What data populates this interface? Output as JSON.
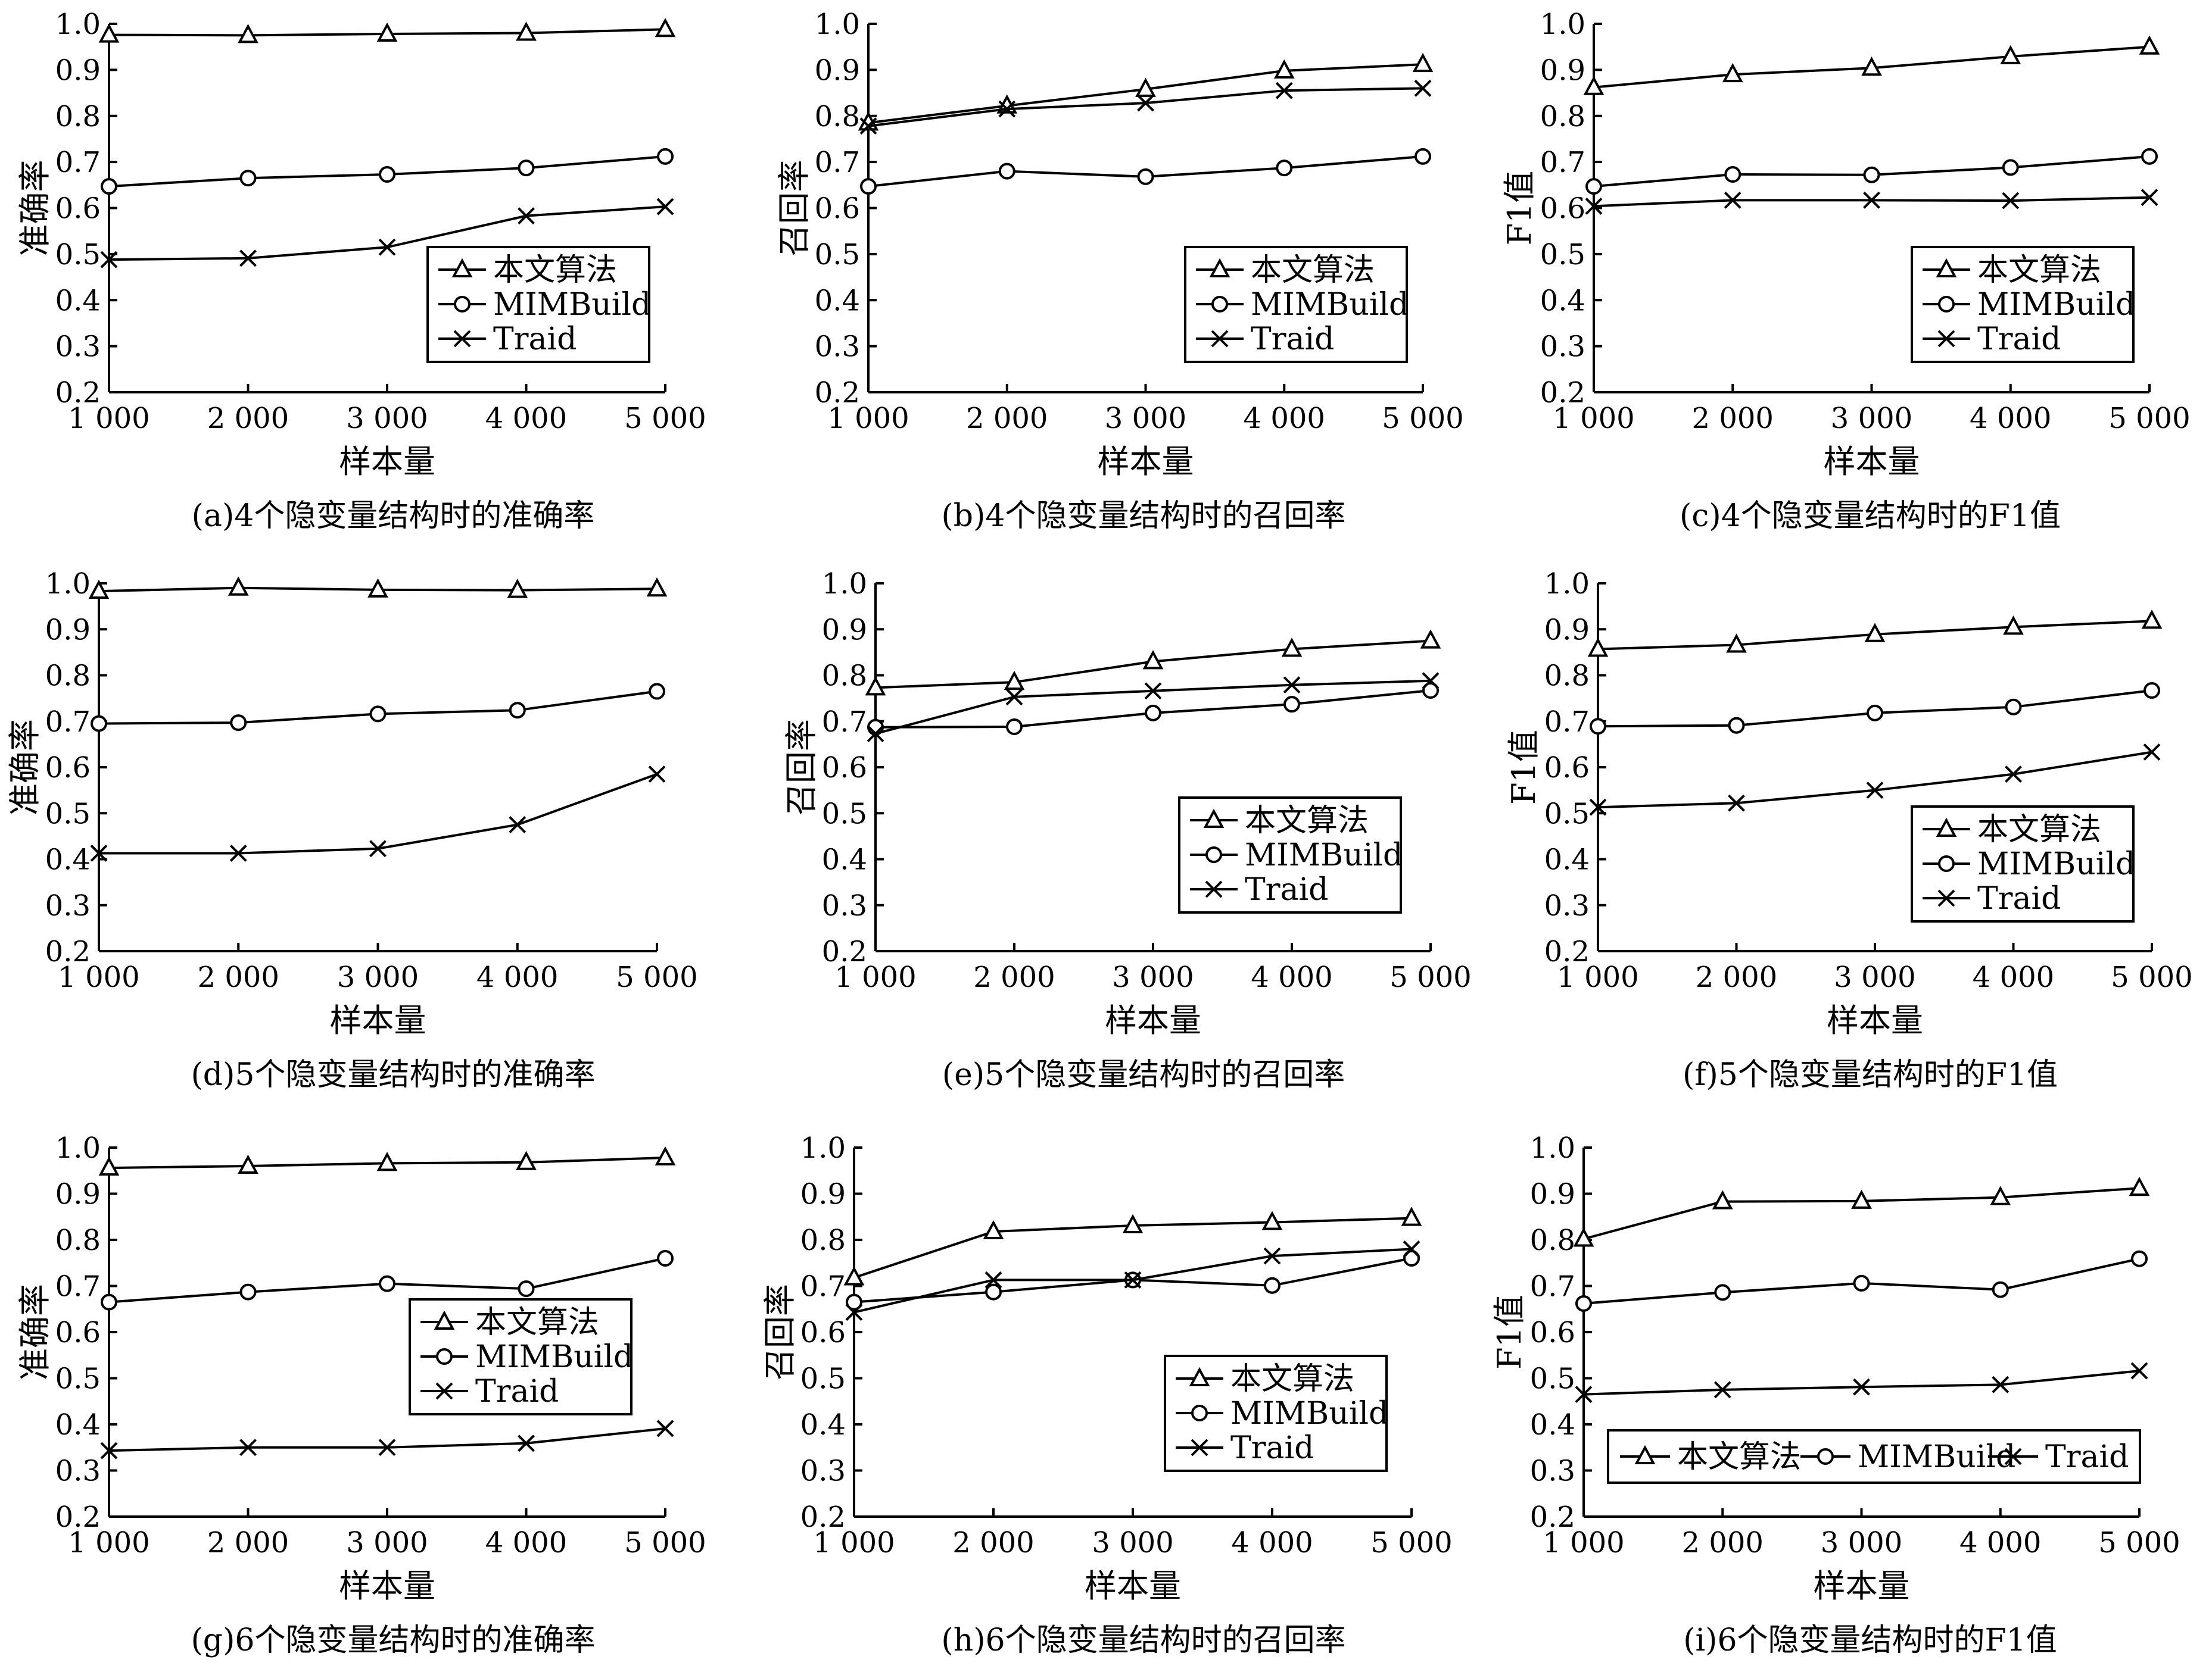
{
  "chart_data": [
    {
      "type": "line",
      "caption": "(a)4个隐变量结构时的准确率",
      "xlabel": "样本量",
      "ylabel": "准确率",
      "categories": [
        "1 000",
        "2 000",
        "3 000",
        "4 000",
        "5 000"
      ],
      "ylim": [
        0.2,
        1.0
      ],
      "yticks": [
        "0.2",
        "0.3",
        "0.4",
        "0.5",
        "0.6",
        "0.7",
        "0.8",
        "0.9",
        "1.0"
      ],
      "legend": "right-middle",
      "series": [
        {
          "name": "本文算法",
          "marker": "triangle",
          "values": [
            0.976,
            0.975,
            0.978,
            0.98,
            0.988
          ]
        },
        {
          "name": "MIMBuild",
          "marker": "circle",
          "values": [
            0.647,
            0.665,
            0.673,
            0.687,
            0.712
          ]
        },
        {
          "name": "Traid",
          "marker": "cross",
          "values": [
            0.488,
            0.491,
            0.515,
            0.583,
            0.603
          ]
        }
      ]
    },
    {
      "type": "line",
      "caption": "(b)4个隐变量结构时的召回率",
      "xlabel": "样本量",
      "ylabel": "召回率",
      "categories": [
        "1 000",
        "2 000",
        "3 000",
        "4 000",
        "5 000"
      ],
      "ylim": [
        0.2,
        1.0
      ],
      "yticks": [
        "0.2",
        "0.3",
        "0.4",
        "0.5",
        "0.6",
        "0.7",
        "0.8",
        "0.9",
        "1.0"
      ],
      "legend": "right-middle",
      "series": [
        {
          "name": "本文算法",
          "marker": "triangle",
          "values": [
            0.785,
            0.822,
            0.858,
            0.898,
            0.912
          ]
        },
        {
          "name": "MIMBuild",
          "marker": "circle",
          "values": [
            0.647,
            0.68,
            0.668,
            0.687,
            0.712
          ]
        },
        {
          "name": "Traid",
          "marker": "cross",
          "values": [
            0.778,
            0.815,
            0.828,
            0.855,
            0.86
          ]
        }
      ]
    },
    {
      "type": "line",
      "caption": "(c)4个隐变量结构时的F1值",
      "xlabel": "样本量",
      "ylabel": "F1值",
      "categories": [
        "1 000",
        "2 000",
        "3 000",
        "4 000",
        "5 000"
      ],
      "ylim": [
        0.2,
        1.0
      ],
      "yticks": [
        "0.2",
        "0.3",
        "0.4",
        "0.5",
        "0.6",
        "0.7",
        "0.8",
        "0.9",
        "1.0"
      ],
      "legend": "right-middle",
      "series": [
        {
          "name": "本文算法",
          "marker": "triangle",
          "values": [
            0.862,
            0.89,
            0.904,
            0.929,
            0.95
          ]
        },
        {
          "name": "MIMBuild",
          "marker": "circle",
          "values": [
            0.647,
            0.673,
            0.672,
            0.688,
            0.712
          ]
        },
        {
          "name": "Traid",
          "marker": "cross",
          "values": [
            0.604,
            0.617,
            0.617,
            0.616,
            0.623
          ]
        }
      ]
    },
    {
      "type": "line",
      "caption": "(d)5个隐变量结构时的准确率",
      "xlabel": "样本量",
      "ylabel": "准确率",
      "categories": [
        "1 000",
        "2 000",
        "3 000",
        "4 000",
        "5 000"
      ],
      "ylim": [
        0.2,
        1.0
      ],
      "yticks": [
        "0.2",
        "0.3",
        "0.4",
        "0.5",
        "0.6",
        "0.7",
        "0.8",
        "0.9",
        "1.0"
      ],
      "legend": "bottom-horizontal",
      "series": [
        {
          "name": "本文算法",
          "marker": "triangle",
          "values": [
            0.983,
            0.99,
            0.986,
            0.985,
            0.988
          ]
        },
        {
          "name": "MIMBuild",
          "marker": "circle",
          "values": [
            0.695,
            0.697,
            0.716,
            0.724,
            0.765
          ]
        },
        {
          "name": "Traid",
          "marker": "cross",
          "values": [
            0.413,
            0.413,
            0.423,
            0.475,
            0.585
          ]
        }
      ]
    },
    {
      "type": "line",
      "caption": "(e)5个隐变量结构时的召回率",
      "xlabel": "样本量",
      "ylabel": "召回率",
      "categories": [
        "1 000",
        "2 000",
        "3 000",
        "4 000",
        "5 000"
      ],
      "ylim": [
        0.2,
        1.0
      ],
      "yticks": [
        "0.2",
        "0.3",
        "0.4",
        "0.5",
        "0.6",
        "0.7",
        "0.8",
        "0.9",
        "1.0"
      ],
      "legend": "right-middle",
      "series": [
        {
          "name": "本文算法",
          "marker": "triangle",
          "values": [
            0.773,
            0.785,
            0.83,
            0.857,
            0.875
          ]
        },
        {
          "name": "MIMBuild",
          "marker": "circle",
          "values": [
            0.687,
            0.688,
            0.718,
            0.737,
            0.767
          ]
        },
        {
          "name": "Traid",
          "marker": "cross",
          "values": [
            0.673,
            0.753,
            0.766,
            0.779,
            0.788
          ]
        }
      ]
    },
    {
      "type": "line",
      "caption": "(f)5个隐变量结构时的F1值",
      "xlabel": "样本量",
      "ylabel": "F1值",
      "categories": [
        "1 000",
        "2 000",
        "3 000",
        "4 000",
        "5 000"
      ],
      "ylim": [
        0.2,
        1.0
      ],
      "yticks": [
        "0.2",
        "0.3",
        "0.4",
        "0.5",
        "0.6",
        "0.7",
        "0.8",
        "0.9",
        "1.0"
      ],
      "legend": "right-middle",
      "series": [
        {
          "name": "本文算法",
          "marker": "triangle",
          "values": [
            0.857,
            0.866,
            0.889,
            0.905,
            0.918
          ]
        },
        {
          "name": "MIMBuild",
          "marker": "circle",
          "values": [
            0.689,
            0.691,
            0.718,
            0.731,
            0.767
          ]
        },
        {
          "name": "Traid",
          "marker": "cross",
          "values": [
            0.513,
            0.522,
            0.55,
            0.585,
            0.633
          ]
        }
      ]
    },
    {
      "type": "line",
      "caption": "(g)6个隐变量结构时的准确率",
      "xlabel": "样本量",
      "ylabel": "准确率",
      "categories": [
        "1 000",
        "2 000",
        "3 000",
        "4 000",
        "5 000"
      ],
      "ylim": [
        0.2,
        1.0
      ],
      "yticks": [
        "0.2",
        "0.3",
        "0.4",
        "0.5",
        "0.6",
        "0.7",
        "0.8",
        "0.9",
        "1.0"
      ],
      "legend": "right-middle",
      "series": [
        {
          "name": "本文算法",
          "marker": "triangle",
          "values": [
            0.956,
            0.96,
            0.966,
            0.968,
            0.978
          ]
        },
        {
          "name": "MIMBuild",
          "marker": "circle",
          "values": [
            0.665,
            0.687,
            0.705,
            0.694,
            0.76
          ]
        },
        {
          "name": "Traid",
          "marker": "cross",
          "values": [
            0.343,
            0.35,
            0.35,
            0.359,
            0.391
          ]
        }
      ]
    },
    {
      "type": "line",
      "caption": "(h)6个隐变量结构时的召回率",
      "xlabel": "样本量",
      "ylabel": "召回率",
      "categories": [
        "1 000",
        "2 000",
        "3 000",
        "4 000",
        "5 000"
      ],
      "ylim": [
        0.2,
        1.0
      ],
      "yticks": [
        "0.2",
        "0.3",
        "0.4",
        "0.5",
        "0.6",
        "0.7",
        "0.8",
        "0.9",
        "1.0"
      ],
      "legend": "right-middle",
      "series": [
        {
          "name": "本文算法",
          "marker": "triangle",
          "values": [
            0.718,
            0.818,
            0.831,
            0.838,
            0.847
          ]
        },
        {
          "name": "MIMBuild",
          "marker": "circle",
          "values": [
            0.665,
            0.687,
            0.713,
            0.701,
            0.76
          ]
        },
        {
          "name": "Traid",
          "marker": "cross",
          "values": [
            0.643,
            0.713,
            0.713,
            0.765,
            0.78
          ]
        }
      ]
    },
    {
      "type": "line",
      "caption": "(i)6个隐变量结构时的F1值",
      "xlabel": "样本量",
      "ylabel": "F1值",
      "categories": [
        "1 000",
        "2 000",
        "3 000",
        "4 000",
        "5 000"
      ],
      "ylim": [
        0.2,
        1.0
      ],
      "yticks": [
        "0.2",
        "0.3",
        "0.4",
        "0.5",
        "0.6",
        "0.7",
        "0.8",
        "0.9",
        "1.0"
      ],
      "legend": "bottom-horizontal",
      "series": [
        {
          "name": "本文算法",
          "marker": "triangle",
          "values": [
            0.802,
            0.883,
            0.884,
            0.892,
            0.912
          ]
        },
        {
          "name": "MIMBuild",
          "marker": "circle",
          "values": [
            0.662,
            0.686,
            0.706,
            0.692,
            0.759
          ]
        },
        {
          "name": "Traid",
          "marker": "cross",
          "values": [
            0.465,
            0.475,
            0.481,
            0.486,
            0.516
          ]
        }
      ]
    }
  ]
}
